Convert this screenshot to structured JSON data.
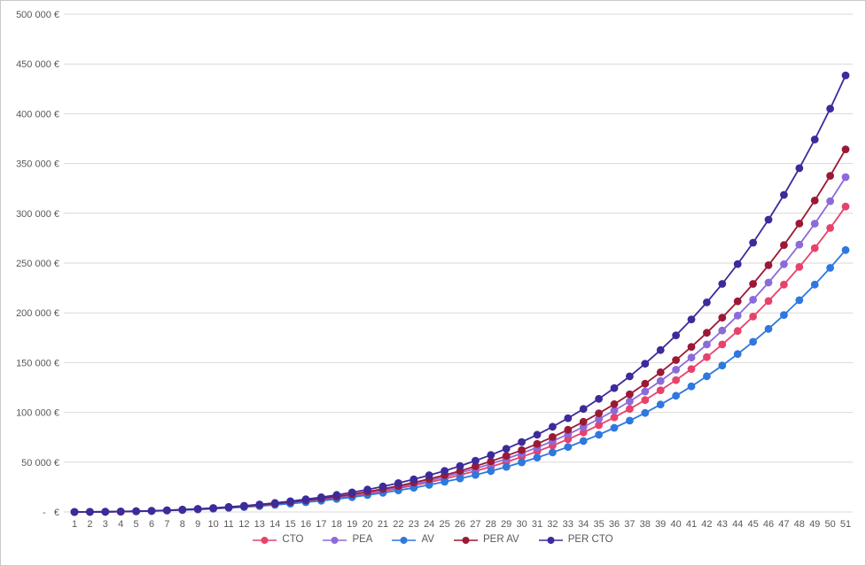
{
  "chart_style": {
    "background": "#FFFFFF",
    "border_color": "#C9C9C9",
    "grid_color": "#D9D9D9",
    "axis_label_color": "#595959",
    "legend_text_color": "#595959"
  },
  "chart_data": {
    "type": "line",
    "title": "",
    "xlabel": "",
    "ylabel": "",
    "grid": true,
    "legend_position": "bottom",
    "marker": "circle",
    "ylim": [
      0,
      500000
    ],
    "ytick_step": 50000,
    "ytick_labels": [
      "-   €",
      "50 000 €",
      "100 000 €",
      "150 000 €",
      "200 000 €",
      "250 000 €",
      "300 000 €",
      "350 000 €",
      "400 000 €",
      "450 000 €",
      "500 000 €"
    ],
    "x": [
      1,
      2,
      3,
      4,
      5,
      6,
      7,
      8,
      9,
      10,
      11,
      12,
      13,
      14,
      15,
      16,
      17,
      18,
      19,
      20,
      21,
      22,
      23,
      24,
      25,
      26,
      27,
      28,
      29,
      30,
      31,
      32,
      33,
      34,
      35,
      36,
      37,
      38,
      39,
      40,
      41,
      42,
      43,
      44,
      45,
      46,
      47,
      48,
      49,
      50,
      51
    ],
    "series": [
      {
        "name": "CTO",
        "color": "#E8426B",
        "values": [
          0,
          100,
          200,
          400,
          700,
          1100,
          1500,
          2100,
          2700,
          3500,
          4300,
          5300,
          6400,
          7700,
          9100,
          10600,
          12300,
          14200,
          16300,
          18500,
          21000,
          23700,
          26700,
          29800,
          33300,
          37100,
          41100,
          45500,
          50200,
          55300,
          60800,
          66700,
          73000,
          79900,
          87200,
          95000,
          103500,
          112500,
          122200,
          132500,
          143600,
          155500,
          168200,
          181800,
          196300,
          211800,
          228400,
          246100,
          265000,
          285200,
          306800
        ]
      },
      {
        "name": "PEA",
        "color": "#8B6BD9",
        "values": [
          0,
          100,
          200,
          400,
          700,
          1100,
          1600,
          2100,
          2800,
          3600,
          4500,
          5500,
          6700,
          8000,
          9500,
          11100,
          12900,
          14900,
          17100,
          19500,
          22100,
          25000,
          28100,
          31500,
          35200,
          39300,
          43600,
          48300,
          53400,
          58900,
          64800,
          71200,
          78000,
          85400,
          93400,
          101900,
          111100,
          121000,
          131600,
          142900,
          155100,
          168200,
          182200,
          197200,
          213200,
          230400,
          248800,
          268500,
          289600,
          312200,
          336300
        ]
      },
      {
        "name": "AV",
        "color": "#2E78DF",
        "values": [
          0,
          100,
          200,
          400,
          600,
          1000,
          1400,
          1900,
          2500,
          3200,
          4000,
          4900,
          5900,
          7100,
          8400,
          9800,
          11300,
          13100,
          14900,
          17000,
          19200,
          21700,
          24300,
          27200,
          30300,
          33600,
          37200,
          41100,
          45300,
          49800,
          54600,
          59800,
          65300,
          71300,
          77600,
          84500,
          91700,
          99500,
          107900,
          116700,
          126200,
          136300,
          147100,
          158600,
          170900,
          183900,
          197900,
          212700,
          228400,
          245200,
          263100
        ]
      },
      {
        "name": "PER AV",
        "color": "#9C1935",
        "values": [
          0,
          100,
          200,
          400,
          700,
          1100,
          1600,
          2200,
          2900,
          3700,
          4700,
          5700,
          7000,
          8300,
          9900,
          11600,
          13500,
          15500,
          17800,
          20400,
          23100,
          26200,
          29500,
          33100,
          37000,
          41200,
          45900,
          50900,
          56300,
          62100,
          68400,
          75300,
          82600,
          90600,
          99100,
          108300,
          118200,
          128800,
          140300,
          152600,
          165800,
          180000,
          195200,
          211600,
          229100,
          247900,
          268100,
          289700,
          312800,
          337600,
          364200
        ]
      },
      {
        "name": "PER CTO",
        "color": "#3B2B9B",
        "values": [
          0,
          100,
          200,
          500,
          800,
          1200,
          1700,
          2400,
          3100,
          4000,
          5100,
          6200,
          7600,
          9100,
          10800,
          12700,
          14800,
          17100,
          19700,
          22500,
          25600,
          29000,
          32800,
          36900,
          41300,
          46200,
          51500,
          57200,
          63500,
          70300,
          77600,
          85600,
          94200,
          103500,
          113600,
          124500,
          136200,
          148900,
          162600,
          177400,
          193400,
          210500,
          229100,
          249000,
          270500,
          293600,
          318500,
          345300,
          374100,
          405100,
          438500
        ]
      }
    ]
  }
}
